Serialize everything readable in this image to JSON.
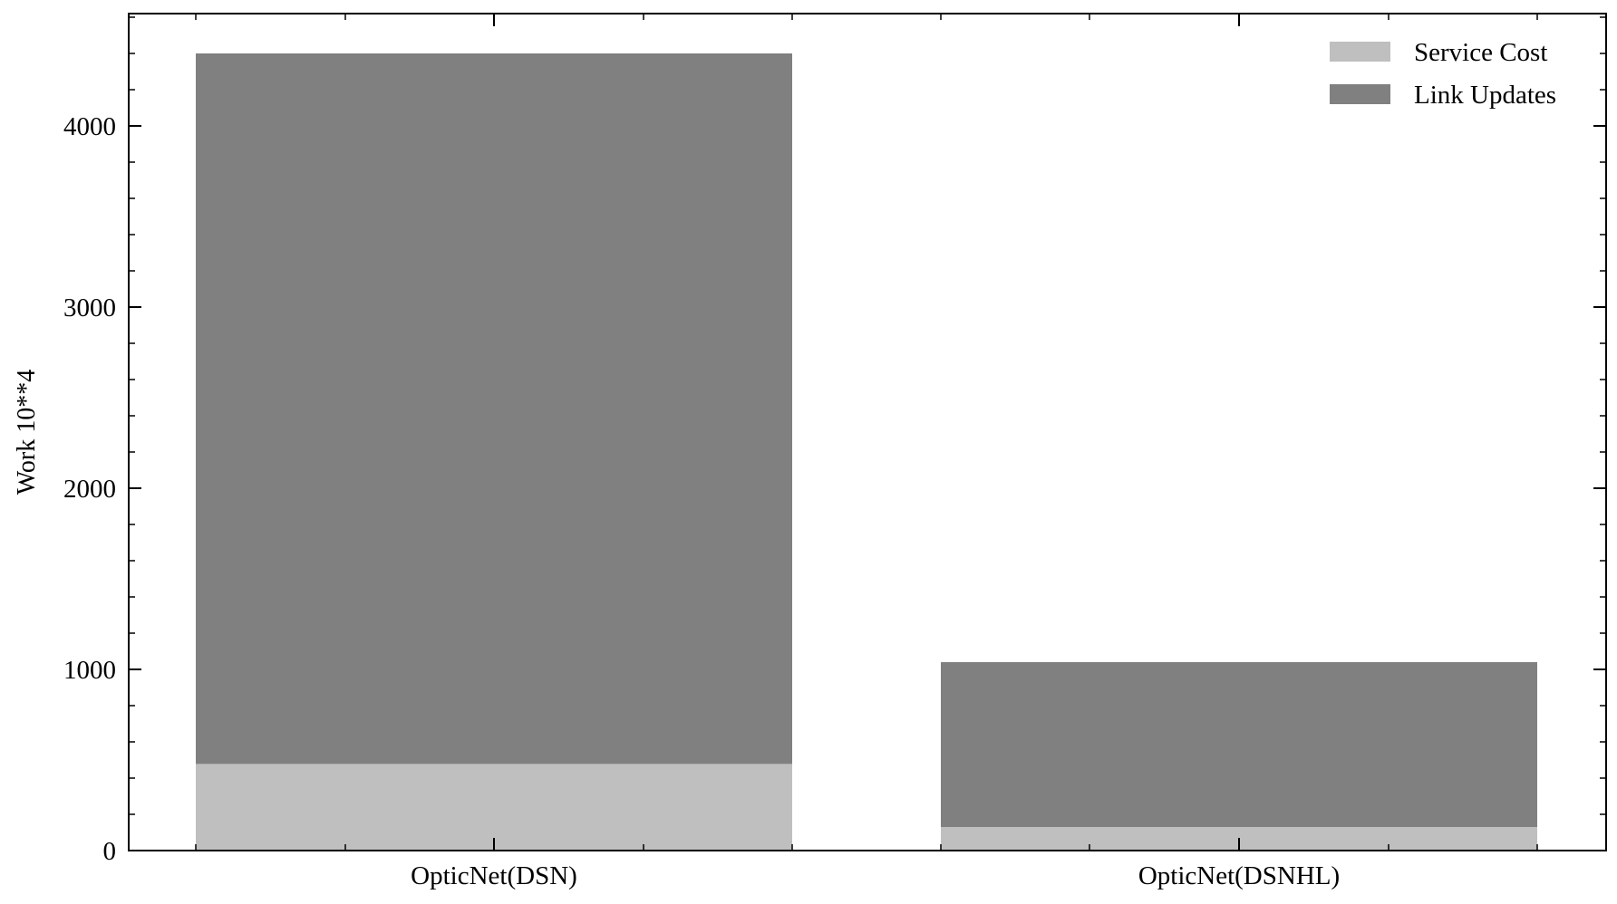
{
  "chart_data": {
    "type": "bar",
    "stacked": true,
    "categories": [
      "OpticNet(DSN)",
      "OpticNet(DSNHL)"
    ],
    "series": [
      {
        "name": "Service Cost",
        "values": [
          478,
          130
        ],
        "color": "#bfbfbf"
      },
      {
        "name": "Link Updates",
        "values": [
          3922,
          910
        ],
        "color": "#808080"
      }
    ],
    "title": "",
    "xlabel": "",
    "ylabel": "Work 10**4",
    "ylim": [
      0,
      4620
    ],
    "yticks": [
      0,
      1000,
      2000,
      3000,
      4000
    ],
    "ytick_labels": [
      "0",
      "1000",
      "2000",
      "3000",
      "4000"
    ],
    "grid": false,
    "legend": {
      "position": "top-right"
    }
  }
}
